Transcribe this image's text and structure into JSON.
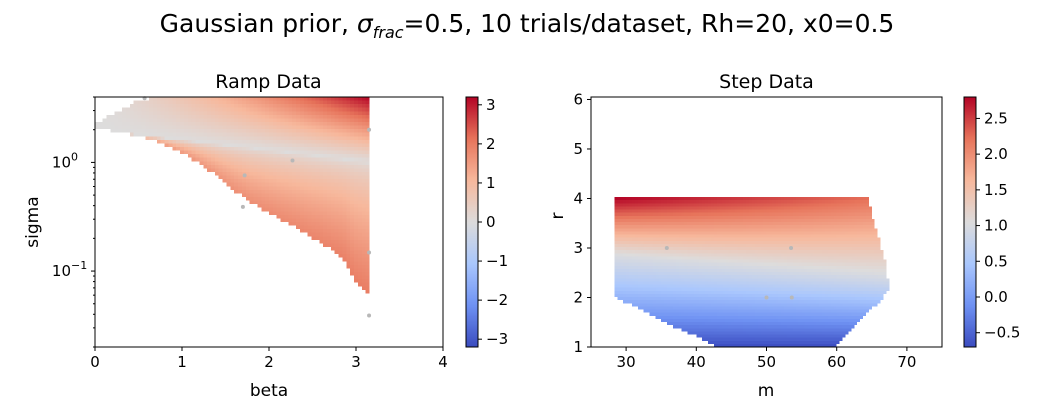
{
  "figure": {
    "suptitle_prefix": "Gaussian prior, ",
    "suptitle_sigma": "σ",
    "suptitle_sub": "frac",
    "suptitle_suffix": "=0.5, 10 trials/dataset, Rh=20, x0=0.5"
  },
  "colormap": {
    "name": "coolwarm",
    "stops": [
      "#3b4cc0",
      "#6f92f3",
      "#aac7fd",
      "#dddcdc",
      "#f7b89c",
      "#e7745b",
      "#b40426"
    ]
  },
  "chart_data": [
    {
      "type": "heatmap",
      "title": "Ramp Data",
      "xlabel": "beta",
      "ylabel": "sigma",
      "xlim": [
        0,
        4
      ],
      "ylim": [
        0.02,
        4.0
      ],
      "yscale": "log",
      "x_ticks": [
        {
          "value": 0,
          "label": "0"
        },
        {
          "value": 1,
          "label": "1"
        },
        {
          "value": 2,
          "label": "2"
        },
        {
          "value": 3,
          "label": "3"
        },
        {
          "value": 4,
          "label": "4"
        }
      ],
      "y_ticks": [
        {
          "value": 0.1,
          "label": "10",
          "exp": "−1"
        },
        {
          "value": 1.0,
          "label": "10",
          "exp": "0"
        }
      ],
      "colorbar": {
        "vmin": -3.2,
        "vmax": 3.2,
        "ticks": [
          {
            "value": 3,
            "label": "3"
          },
          {
            "value": 2,
            "label": "2"
          },
          {
            "value": 1,
            "label": "1"
          },
          {
            "value": 0,
            "label": "0"
          },
          {
            "value": -1,
            "label": "−1"
          },
          {
            "value": -2,
            "label": "−2"
          },
          {
            "value": -3,
            "label": "−3"
          }
        ]
      },
      "region": {
        "beta_max": 3.15,
        "boundary_beta_sigma": [
          [
            0.0,
            2.05
          ],
          [
            0.5,
            1.75
          ],
          [
            0.8,
            1.45
          ],
          [
            1.1,
            1.1
          ],
          [
            1.35,
            0.8
          ],
          [
            1.6,
            0.55
          ],
          [
            1.8,
            0.42
          ],
          [
            2.0,
            0.34
          ],
          [
            2.3,
            0.25
          ],
          [
            2.6,
            0.18
          ],
          [
            2.85,
            0.13
          ],
          [
            3.0,
            0.08
          ],
          [
            3.15,
            0.06
          ]
        ],
        "upper_edge_beta_sigma": [
          [
            0.0,
            2.3
          ],
          [
            0.3,
            3.0
          ],
          [
            0.5,
            3.7
          ],
          [
            0.7,
            4.0
          ]
        ]
      },
      "value_anchors": {
        "ridge_sigma_at_beta0": 2.0,
        "ridge_sigma_at_betamax": 1.0,
        "top_right_value": 3.2,
        "interior_value": 1.6
      },
      "points": [
        {
          "x": 0.57,
          "y": 3.9
        },
        {
          "x": 1.72,
          "y": 0.76
        },
        {
          "x": 2.27,
          "y": 1.04
        },
        {
          "x": 1.7,
          "y": 0.39
        },
        {
          "x": 3.15,
          "y": 2.0
        },
        {
          "x": 3.15,
          "y": 0.148
        },
        {
          "x": 3.15,
          "y": 0.039
        }
      ]
    },
    {
      "type": "heatmap",
      "title": "Step Data",
      "xlabel": "m",
      "ylabel": "r",
      "xlim": [
        25,
        75
      ],
      "ylim": [
        1,
        6.05
      ],
      "yscale": "linear",
      "x_ticks": [
        {
          "value": 30,
          "label": "30"
        },
        {
          "value": 40,
          "label": "40"
        },
        {
          "value": 50,
          "label": "50"
        },
        {
          "value": 60,
          "label": "60"
        },
        {
          "value": 70,
          "label": "70"
        }
      ],
      "y_ticks": [
        {
          "value": 1,
          "label": "1"
        },
        {
          "value": 2,
          "label": "2"
        },
        {
          "value": 3,
          "label": "3"
        },
        {
          "value": 4,
          "label": "4"
        },
        {
          "value": 5,
          "label": "5"
        },
        {
          "value": 6,
          "label": "6"
        }
      ],
      "colorbar": {
        "vmin": -0.7,
        "vmax": 2.8,
        "ticks": [
          {
            "value": 2.5,
            "label": "2.5"
          },
          {
            "value": 2.0,
            "label": "2.0"
          },
          {
            "value": 1.5,
            "label": "1.5"
          },
          {
            "value": 1.0,
            "label": "1.0"
          },
          {
            "value": 0.5,
            "label": "0.5"
          },
          {
            "value": 0.0,
            "label": "0.0"
          },
          {
            "value": -0.5,
            "label": "−0.5"
          }
        ]
      },
      "region": {
        "r_top": 4.0,
        "left_edge_m_r": [
          [
            28.5,
            4.0
          ],
          [
            28.5,
            2.0
          ]
        ],
        "bottom_edge_m_r": [
          [
            28.5,
            2.0
          ],
          [
            33,
            1.7
          ],
          [
            37,
            1.4
          ],
          [
            41,
            1.15
          ],
          [
            43,
            1.0
          ],
          [
            60,
            1.0
          ],
          [
            63,
            1.5
          ],
          [
            66,
            1.9
          ],
          [
            67.5,
            2.15
          ]
        ],
        "right_edge_m_r": [
          [
            67.5,
            2.15
          ],
          [
            67,
            2.7
          ],
          [
            65.8,
            3.3
          ],
          [
            65,
            3.7
          ],
          [
            64.5,
            4.0
          ]
        ]
      },
      "value_anchors": {
        "v_top_left": 2.8,
        "v_top_right": 2.2,
        "v_white_r_left": 2.85,
        "v_white_r_right": 2.45,
        "v_bottom": -0.7
      },
      "points": [
        {
          "x": 35.8,
          "y": 3.0
        },
        {
          "x": 53.5,
          "y": 3.0
        },
        {
          "x": 50.0,
          "y": 2.0
        },
        {
          "x": 53.6,
          "y": 2.0
        }
      ]
    }
  ]
}
